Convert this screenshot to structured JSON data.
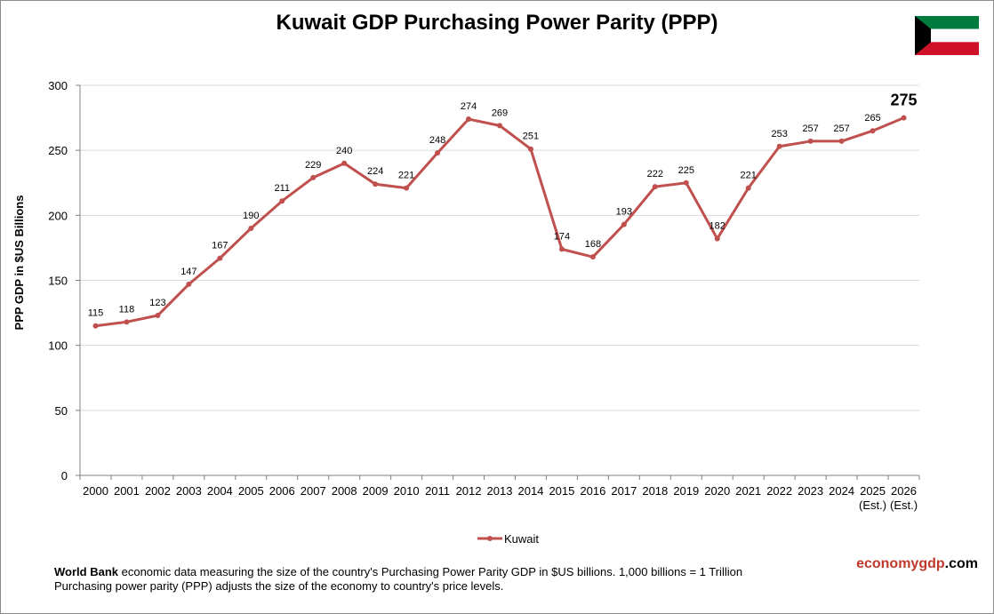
{
  "title": "Kuwait GDP Purchasing Power Parity (PPP)",
  "flag": {
    "name": "kuwait-flag",
    "colors": {
      "green": "#007a3d",
      "white": "#ffffff",
      "red": "#ce1126",
      "black": "#000000"
    }
  },
  "footer": {
    "bold": "World Bank",
    "line1_rest": " economic data measuring the size of the country's Purchasing Power Parity GDP in $US billions. 1,000 billions = 1 Trillion",
    "line2": "Purchasing power parity (PPP) adjusts the size of the economy to country's price levels."
  },
  "brand": {
    "part1": "economy",
    "part2": "gdp",
    "part3": ".com"
  },
  "chart_data": {
    "type": "line",
    "title": "Kuwait GDP Purchasing Power Parity (PPP)",
    "xlabel": "",
    "ylabel": "PPP GDP in $US Billions",
    "ylim": [
      0,
      300
    ],
    "yticks": [
      0,
      50,
      100,
      150,
      200,
      250,
      300
    ],
    "grid": true,
    "legend_position": "bottom",
    "series_color": "#c0504d",
    "categories": [
      "2000",
      "2001",
      "2002",
      "2003",
      "2004",
      "2005",
      "2006",
      "2007",
      "2008",
      "2009",
      "2010",
      "2011",
      "2012",
      "2013",
      "2014",
      "2015",
      "2016",
      "2017",
      "2018",
      "2019",
      "2020",
      "2021",
      "2022",
      "2023",
      "2024",
      "2025",
      "2026"
    ],
    "category_sublabels": {
      "2025": "(Est.)",
      "2026": "(Est.)"
    },
    "series": [
      {
        "name": "Kuwait",
        "values": [
          115,
          118,
          123,
          147,
          167,
          190,
          211,
          229,
          240,
          224,
          221,
          248,
          274,
          269,
          251,
          174,
          168,
          193,
          222,
          225,
          182,
          221,
          253,
          257,
          257,
          265,
          275
        ]
      }
    ],
    "highlight_last_label": "275"
  }
}
